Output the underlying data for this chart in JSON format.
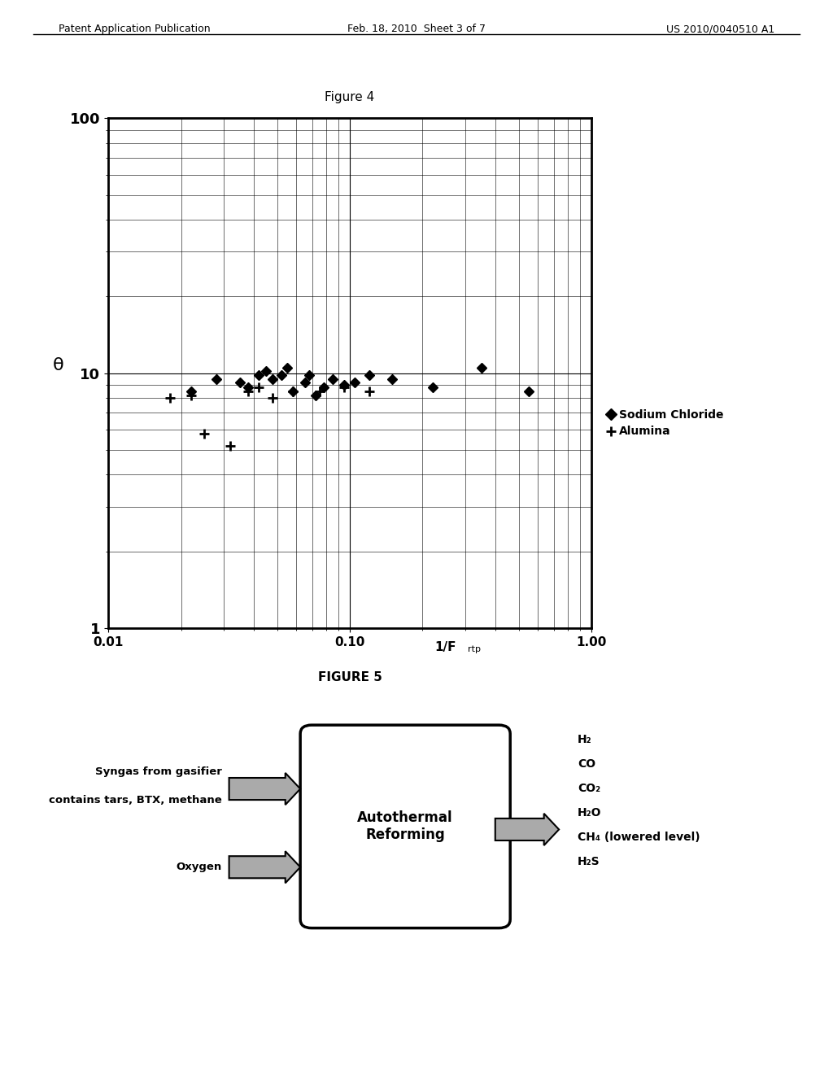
{
  "fig4_title": "Figure 4",
  "fig5_title": "FIGURE 5",
  "header_left": "Patent Application Publication",
  "header_center": "Feb. 18, 2010  Sheet 3 of 7",
  "header_right": "US 2010/0040510 A1",
  "ylabel": "θ",
  "ylim": [
    1,
    100
  ],
  "xlim": [
    0.01,
    1.0
  ],
  "legend_sodium": "Sodium Chloride",
  "legend_alumina": "Alumina",
  "sodium_x": [
    0.022,
    0.028,
    0.035,
    0.038,
    0.042,
    0.045,
    0.048,
    0.052,
    0.055,
    0.058,
    0.065,
    0.068,
    0.072,
    0.078,
    0.085,
    0.095,
    0.105,
    0.12,
    0.15,
    0.22,
    0.35,
    0.55
  ],
  "sodium_y": [
    8.5,
    9.5,
    9.2,
    8.8,
    9.8,
    10.2,
    9.5,
    9.8,
    10.5,
    8.5,
    9.2,
    9.8,
    8.2,
    8.8,
    9.5,
    9.0,
    9.2,
    9.8,
    9.5,
    8.8,
    10.5,
    8.5
  ],
  "alumina_x": [
    0.018,
    0.022,
    0.025,
    0.032,
    0.038,
    0.042,
    0.048,
    0.058,
    0.075,
    0.095,
    0.12
  ],
  "alumina_y": [
    8.0,
    8.2,
    5.8,
    5.2,
    8.5,
    8.8,
    8.0,
    8.5,
    8.5,
    8.8,
    8.5
  ],
  "syngas_label1": "Syngas from gasifier",
  "syngas_label2": "contains tars, BTX, methane",
  "oxygen_label": "Oxygen",
  "box_label1": "Autothermal",
  "box_label2": "Reforming",
  "output_lines": [
    "H₂",
    "CO",
    "CO₂",
    "H₂O",
    "CH₄ (lowered level)",
    "H₂S"
  ]
}
